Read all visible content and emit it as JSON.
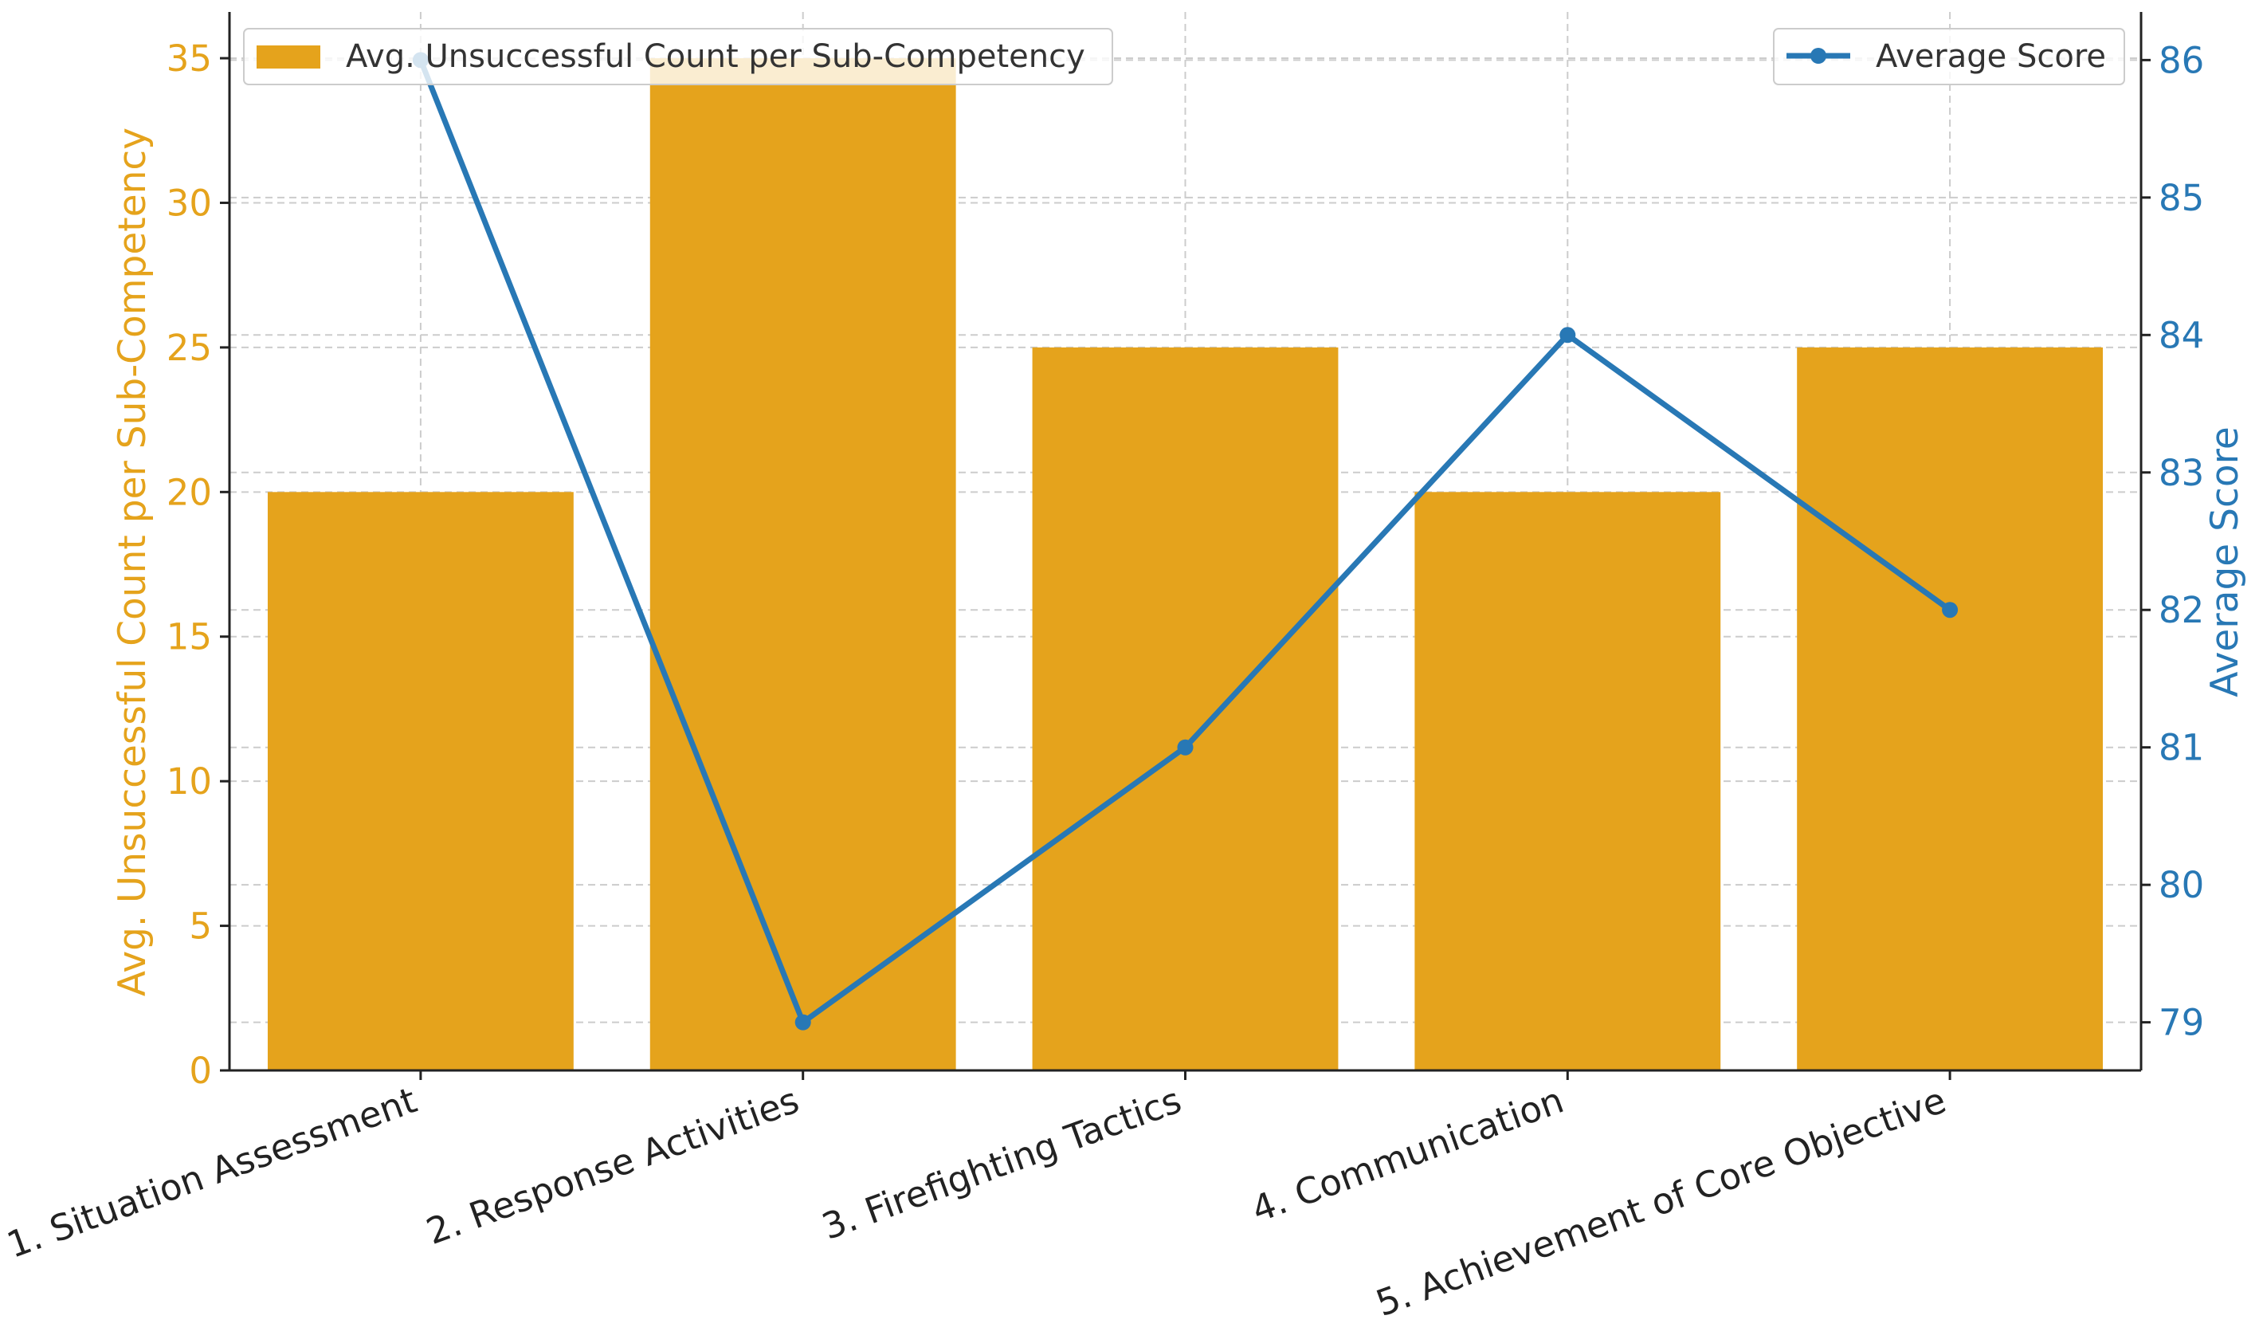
{
  "chart_data": {
    "type": "bar+line",
    "categories": [
      "1. Situation Assessment",
      "2. Response Activities",
      "3. Firefighting Tactics",
      "4. Communication",
      "5. Achievement of Core Objective"
    ],
    "series": [
      {
        "name": "Avg. Unsuccessful Count per Sub-Competency",
        "type": "bar",
        "axis": "left",
        "color": "#E5A31C",
        "values": [
          20,
          35,
          25,
          20,
          25
        ]
      },
      {
        "name": "Average Score",
        "type": "line",
        "axis": "right",
        "color": "#2878B5",
        "values": [
          86,
          79,
          81,
          84,
          82
        ]
      }
    ],
    "left_axis": {
      "label": "Avg. Unsuccessful Count per Sub-Competency",
      "ticks": [
        "0",
        "5",
        "10",
        "15",
        "20",
        "25",
        "30",
        "35"
      ],
      "range": [
        0,
        36.6
      ],
      "color": "#E5A31C"
    },
    "right_axis": {
      "label": "Average Score",
      "ticks": [
        "79",
        "80",
        "81",
        "82",
        "83",
        "84",
        "85",
        "86"
      ],
      "range": [
        78.65,
        86.35
      ],
      "color": "#2878B5"
    },
    "legend_left": {
      "label": "Avg. Unsuccessful Count per Sub-Competency",
      "position": "top-left"
    },
    "legend_right": {
      "label": "Average Score",
      "position": "top-right"
    },
    "grid": true
  }
}
